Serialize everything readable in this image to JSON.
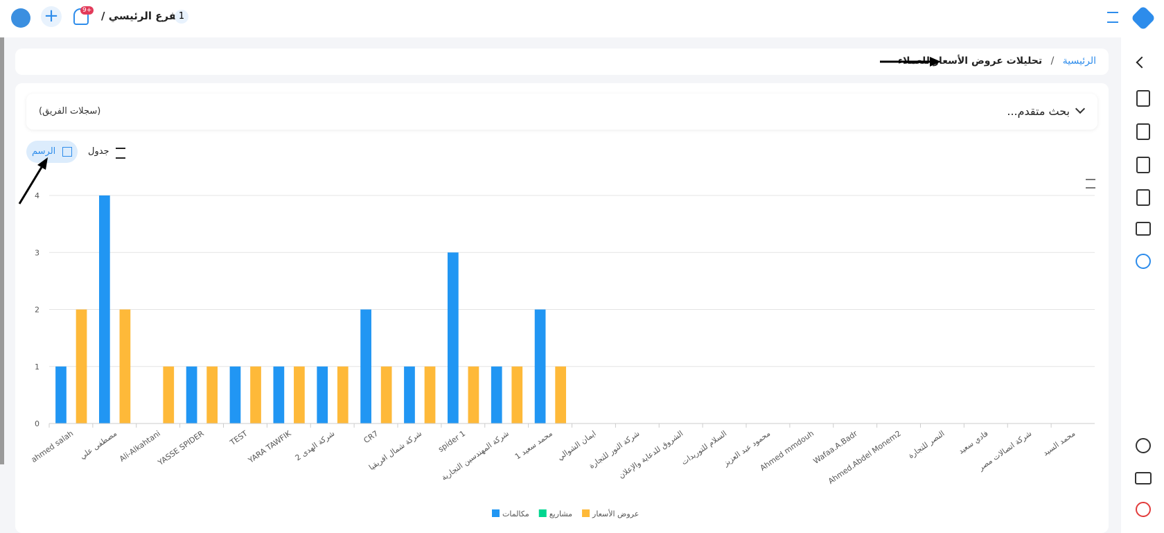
{
  "topbar": {
    "branch_count": "1",
    "branch": "الفرع الرئيسي /",
    "notifications": "9+"
  },
  "breadcrumb": {
    "home": "الرئيسية",
    "separator": "/",
    "current": "تحليلات عروض الأسعار للعملاء"
  },
  "search": {
    "label": "بحث متقدم...",
    "scope": "(سجلات الفريق)"
  },
  "tabs": {
    "table": "جدول",
    "chart": "الرسم"
  },
  "chart_data": {
    "type": "bar",
    "categories": [
      "ahmed salah",
      "مصطفى علي",
      "Ali-Alkahtani",
      "YASSE SPIDER",
      "TEST",
      "YARA TAWFIK",
      "شركة الهدى 2",
      "CR7",
      "شركة شمال افريقيا",
      "spider 1",
      "شركة المهندسين التجارية",
      "محمد سعيد 1",
      "ايمان الشوالي",
      "شركة النور للتجارة",
      "الشروق للدعاية والإعلان",
      "السلام للتوريدات",
      "محمود عبد العزيز",
      "Ahmed mmdouh",
      "Wafaa.A.Badr",
      "Ahmed.Abdel Monem2",
      "النصر للتجارة",
      "فادي سعيد",
      "شركة اتصالات مصر",
      "محمد السيد"
    ],
    "series": [
      {
        "name": "مكالمات",
        "color": "#2196f3",
        "values": [
          1,
          4,
          0,
          1,
          1,
          1,
          1,
          2,
          1,
          3,
          1,
          2,
          0,
          0,
          0,
          0,
          0,
          0,
          0,
          0,
          0,
          0,
          0,
          0
        ]
      },
      {
        "name": "مشاريع",
        "color": "#00d68f",
        "values": [
          0,
          0,
          0,
          0,
          0,
          0,
          0,
          0,
          0,
          0,
          0,
          0,
          0,
          0,
          0,
          0,
          0,
          0,
          0,
          0,
          0,
          0,
          0,
          0
        ]
      },
      {
        "name": "عروض الأسعار",
        "color": "#feb939",
        "values": [
          2,
          2,
          1,
          1,
          1,
          1,
          1,
          1,
          1,
          1,
          1,
          1,
          0,
          0,
          0,
          0,
          0,
          0,
          0,
          0,
          0,
          0,
          0,
          0
        ]
      }
    ],
    "ylim": [
      0,
      4
    ],
    "yticks": [
      0,
      1,
      2,
      3,
      4
    ],
    "grid": true
  }
}
